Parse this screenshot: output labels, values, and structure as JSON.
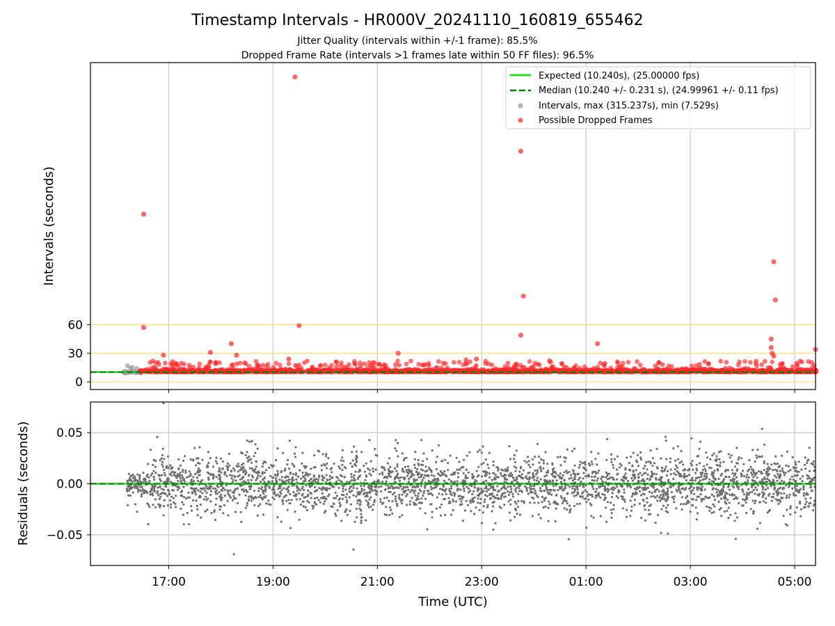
{
  "chart_data": [
    {
      "type": "scatter",
      "title": "Timestamp Intervals - HR000V_20241110_160819_655462",
      "subtitle_lines": [
        "Jitter Quality (intervals within +/-1 frame): 85.5%",
        "Dropped Frame Rate (intervals >1 frames late within 50 FF files): 96.5%"
      ],
      "ylabel": "Intervals (seconds)",
      "xlabel": "",
      "yticks": [
        0,
        30,
        60
      ],
      "ylim": [
        -8,
        335
      ],
      "xlim_hours": [
        15.5,
        29.4
      ],
      "reference_lines": [
        0,
        30,
        60
      ],
      "grid": "vertical",
      "legend_position": "top-right",
      "legend": [
        {
          "label": "Expected (10.240s), (25.00000 fps)",
          "style": "solid",
          "color": "#00e600"
        },
        {
          "label": "Median (10.240 +/- 0.231 s), (24.99961 +/- 0.11 fps)",
          "style": "dashed",
          "color": "#008000"
        },
        {
          "label": "Intervals, max (315.237s), min (7.529s)",
          "style": "marker",
          "color": "#a0a0a0"
        },
        {
          "label": "Possible Dropped Frames",
          "style": "marker",
          "color": "#ff2a2a"
        }
      ],
      "series": [
        {
          "name": "Expected (10.240s), (25.00000 fps)",
          "y": 10.24
        },
        {
          "name": "Median (10.240 +/- 0.231 s), (24.99961 +/- 0.11 fps)",
          "y": 10.24
        },
        {
          "name": "Intervals, max (315.237s), min (7.529s)",
          "max": 315.237,
          "min": 7.529,
          "x_start": "16:08",
          "x_end": "05:25"
        },
        {
          "name": "Possible Dropped Frames",
          "x": [
            16.52,
            16.52,
            19.42,
            19.5,
            18.2,
            21.4,
            23.75,
            23.8,
            23.75,
            25.22,
            28.6,
            28.63,
            28.55,
            28.55,
            28.57,
            28.6,
            29.4,
            16.9,
            17.8,
            18.3,
            19.3,
            22.7,
            22.9,
            24.3,
            26.4
          ],
          "y": [
            176,
            57,
            320,
            59,
            40,
            30,
            242,
            90,
            49,
            40,
            126,
            86,
            45,
            36,
            30,
            27,
            34,
            28,
            31,
            28,
            24,
            23,
            24,
            22,
            20
          ]
        }
      ]
    },
    {
      "type": "scatter",
      "title": "",
      "xlabel": "Time (UTC)",
      "ylabel": "Residuals (seconds)",
      "yticks": [
        -0.05,
        0.0,
        0.05
      ],
      "ytick_labels": [
        "−0.05",
        "0.00",
        "0.05"
      ],
      "ylim": [
        -0.08,
        0.08
      ],
      "xticks_labels": [
        "17:00",
        "19:00",
        "21:00",
        "23:00",
        "01:00",
        "03:00",
        "05:00"
      ],
      "xticks_hours": [
        17,
        19,
        21,
        23,
        25,
        27,
        29
      ],
      "grid": "both",
      "series": [
        {
          "name": "Residuals",
          "x_start_hour": 16.2,
          "x_end_hour": 29.4,
          "spread_sd": 0.015,
          "extremes": [
            -0.069,
            0.079
          ]
        }
      ]
    }
  ]
}
